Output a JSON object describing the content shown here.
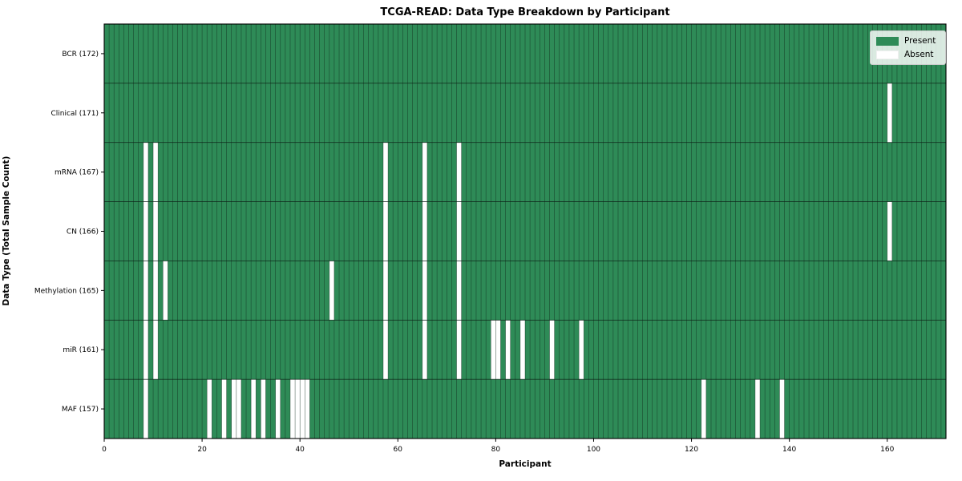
{
  "chart_data": {
    "type": "heatmap",
    "title": "TCGA-READ: Data Type Breakdown by Participant",
    "xlabel": "Participant",
    "ylabel": "Data Type (Total Sample Count)",
    "n_participants": 172,
    "x_domain": [
      0,
      172
    ],
    "x_ticks": [
      0,
      20,
      40,
      60,
      80,
      100,
      120,
      140,
      160
    ],
    "grid": true,
    "legend_position": "upper right",
    "colors": {
      "present": "#2e8b57",
      "absent": "#ffffff",
      "cell_edge": "#0d2117",
      "spine": "#000000"
    },
    "rows": [
      {
        "label": "BCR (172)",
        "total": 172,
        "absent": []
      },
      {
        "label": "Clinical (171)",
        "total": 171,
        "absent": [
          160
        ]
      },
      {
        "label": "mRNA (167)",
        "total": 167,
        "absent": [
          8,
          10,
          57,
          65,
          72
        ]
      },
      {
        "label": "CN (166)",
        "total": 166,
        "absent": [
          8,
          10,
          57,
          65,
          72,
          160
        ]
      },
      {
        "label": "Methylation (165)",
        "total": 165,
        "absent": [
          8,
          10,
          12,
          46,
          57,
          65,
          72
        ]
      },
      {
        "label": "miR (161)",
        "total": 161,
        "absent": [
          8,
          10,
          57,
          65,
          72,
          79,
          80,
          82,
          85,
          91,
          97
        ]
      },
      {
        "label": "MAF (157)",
        "total": 157,
        "absent": [
          8,
          21,
          24,
          26,
          27,
          30,
          32,
          35,
          38,
          39,
          40,
          41,
          122,
          133,
          138
        ]
      }
    ],
    "legend": [
      {
        "label": "Present",
        "color": "#2e8b57"
      },
      {
        "label": "Absent",
        "color": "#ffffff"
      }
    ]
  }
}
